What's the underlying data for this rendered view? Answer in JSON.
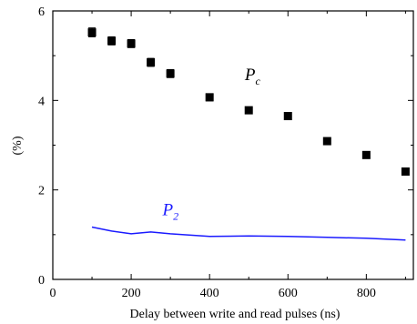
{
  "chart_data": {
    "type": "scatter",
    "xlabel": "Delay between write and read pulses (ns)",
    "ylabel": "(%)",
    "xlim": [
      0,
      920
    ],
    "ylim": [
      0,
      6
    ],
    "xticks": [
      0,
      200,
      400,
      600,
      800
    ],
    "xticks_minor": [
      100,
      300,
      500,
      700,
      900
    ],
    "yticks": [
      0,
      2,
      4,
      6
    ],
    "yticks_minor": [
      1,
      3,
      5
    ],
    "grid": false,
    "series": [
      {
        "name": "Pc",
        "label_main": "P",
        "label_sub": "c",
        "label_pos": [
          490,
          4.45
        ],
        "style": "markers-with-errorbars",
        "color": "#000000",
        "x": [
          100,
          150,
          200,
          250,
          300,
          400,
          500,
          600,
          700,
          800,
          900
        ],
        "y": [
          5.52,
          5.33,
          5.27,
          4.85,
          4.6,
          4.07,
          3.78,
          3.65,
          3.09,
          2.78,
          2.41
        ],
        "err": [
          0.1,
          0.09,
          0.09,
          0.09,
          0.09,
          0.08,
          0.07,
          0.07,
          0.06,
          0.05,
          0.05
        ]
      },
      {
        "name": "P2",
        "label_main": "P",
        "label_sub": "2",
        "label_pos": [
          280,
          1.43
        ],
        "style": "line",
        "color": "#1a1aff",
        "x": [
          100,
          150,
          200,
          250,
          300,
          400,
          500,
          600,
          700,
          800,
          900
        ],
        "y": [
          1.17,
          1.08,
          1.02,
          1.06,
          1.02,
          0.96,
          0.97,
          0.96,
          0.94,
          0.92,
          0.88
        ]
      }
    ]
  }
}
